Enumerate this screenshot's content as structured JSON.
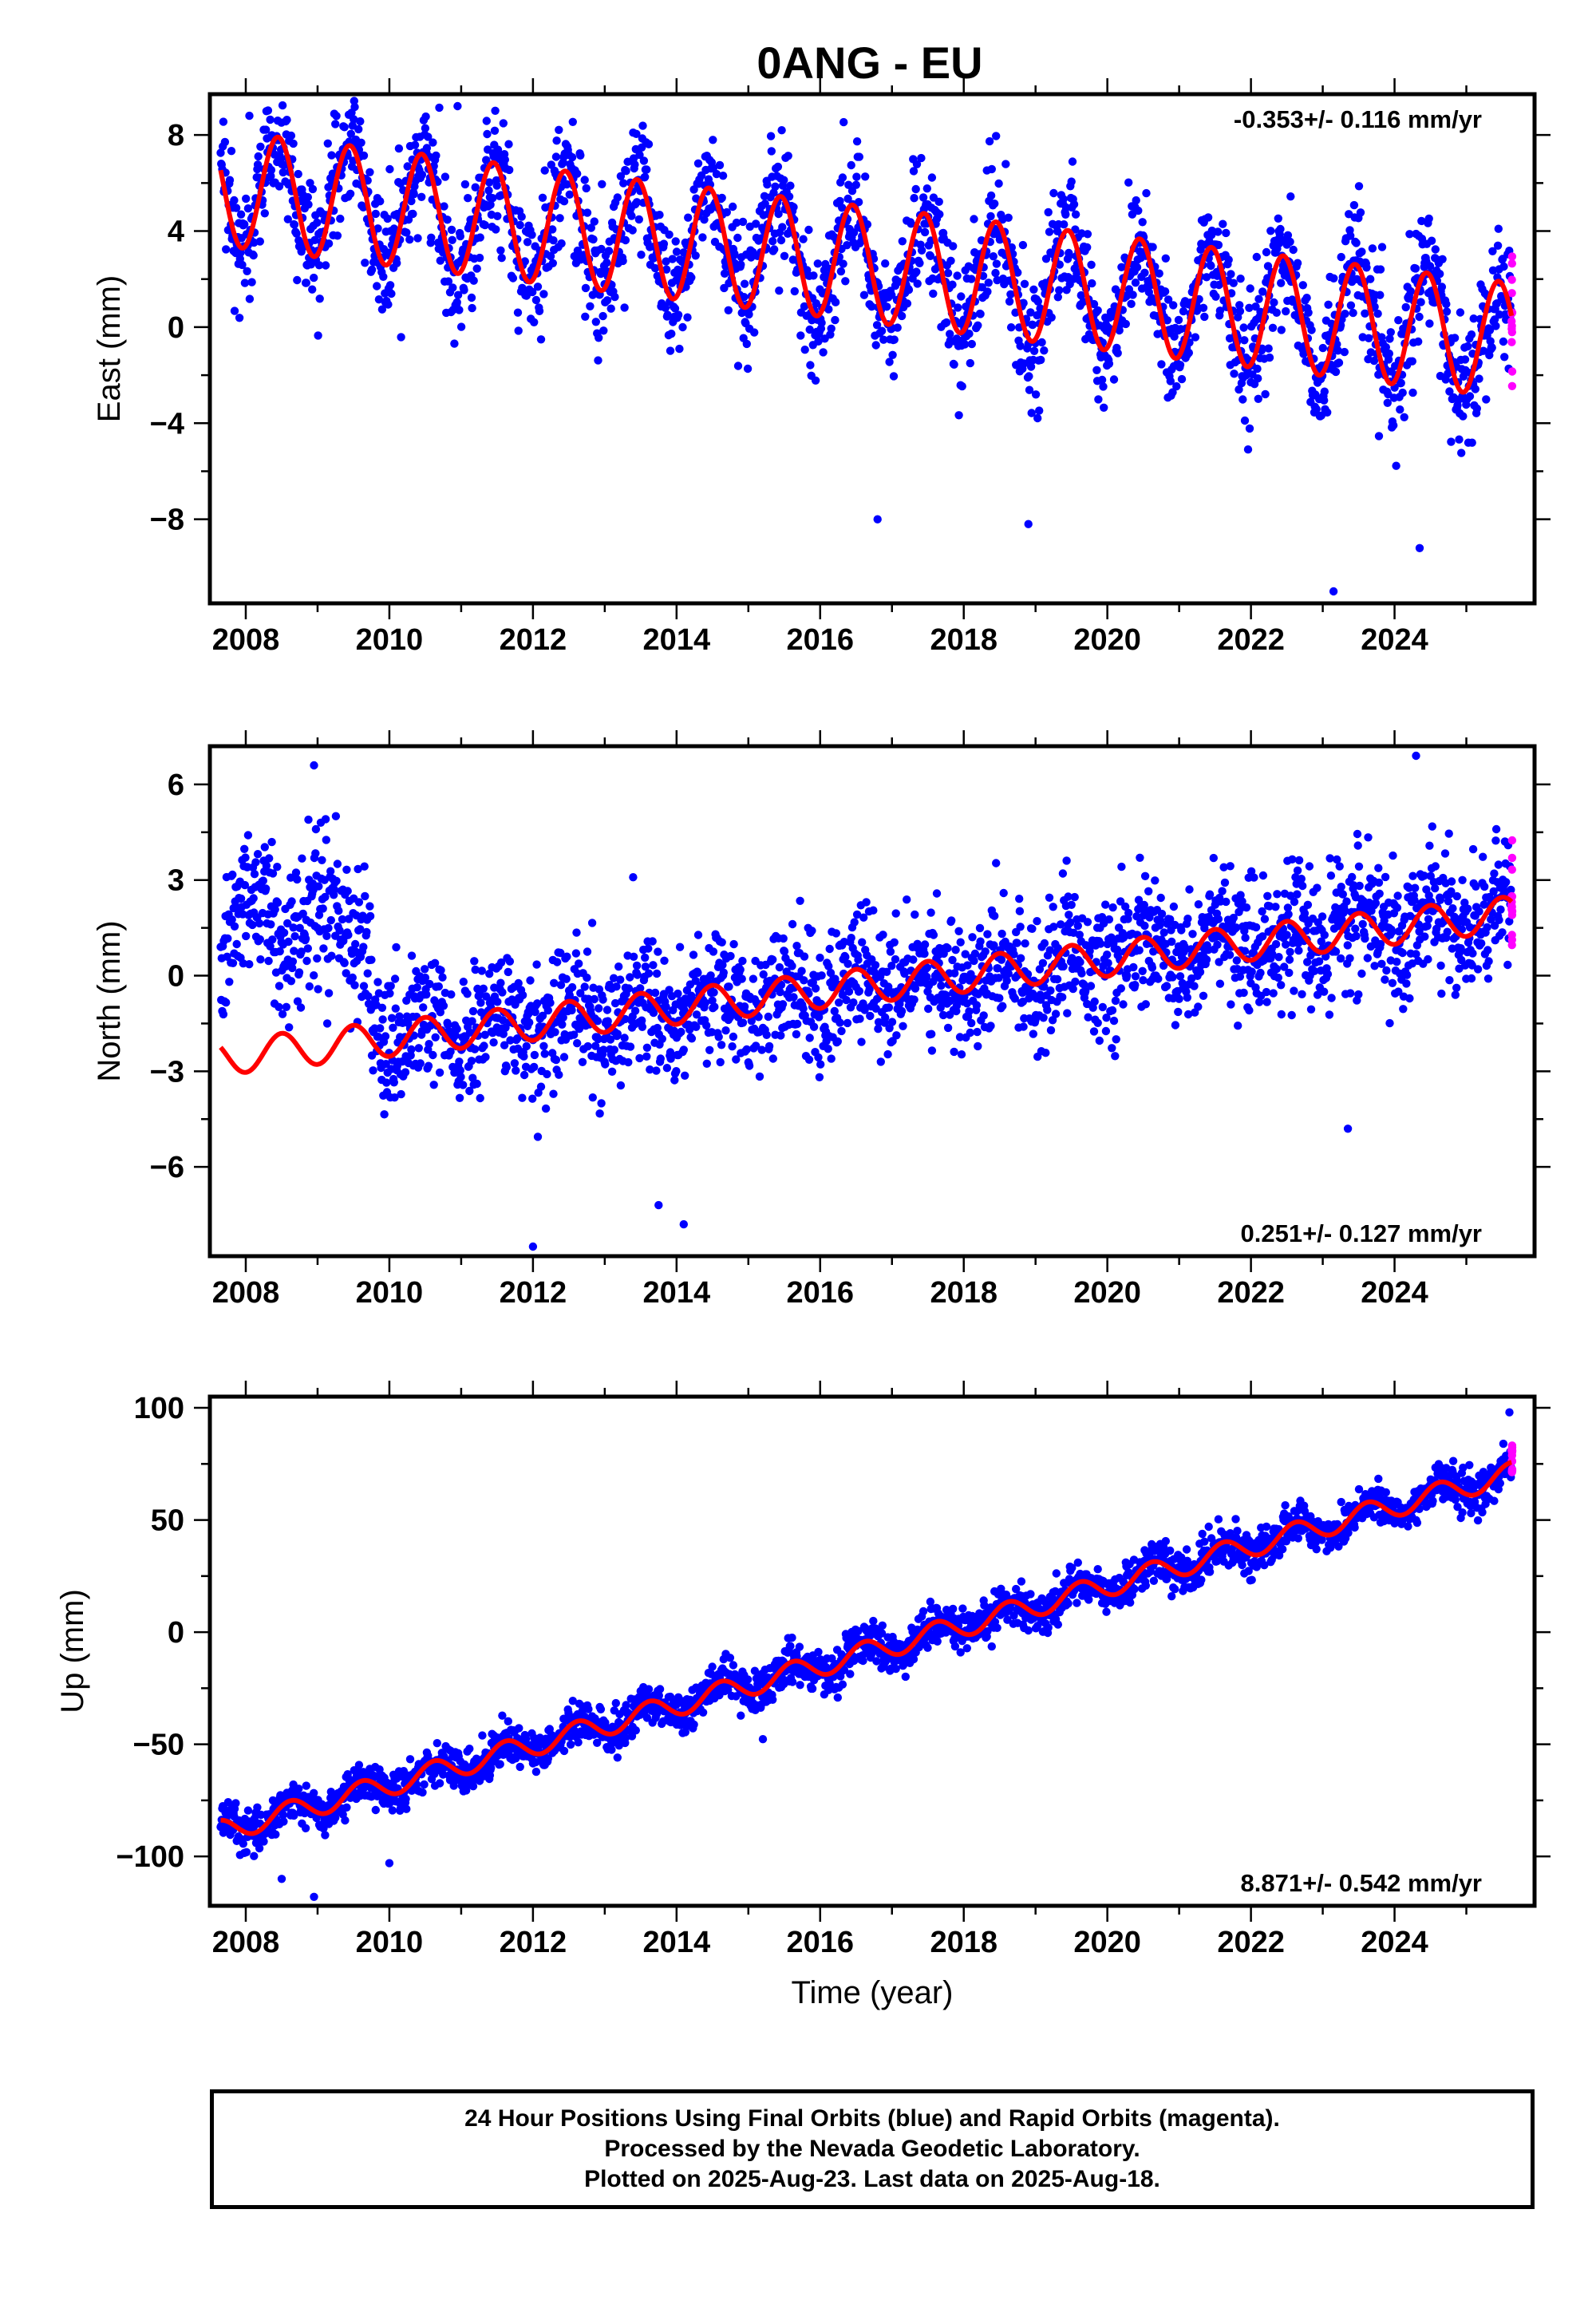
{
  "title": "0ANG - EU",
  "colors": {
    "final_orbits": "#0000ff",
    "rapid_orbits": "#ff00ff",
    "model": "#ff0000",
    "axes": "#000000"
  },
  "chart_data": [
    {
      "type": "scatter",
      "component": "East",
      "ylabel": "East (mm)",
      "xlabel": "",
      "xlim": [
        2007.5,
        2025.95
      ],
      "ylim": [
        -11.5,
        9.7
      ],
      "xticks": [
        2008,
        2010,
        2012,
        2014,
        2016,
        2018,
        2020,
        2022,
        2024
      ],
      "yticks": [
        -8,
        -4,
        0,
        4,
        8
      ],
      "yticklabels": [
        "−8",
        "−4",
        "0",
        "4",
        "8"
      ],
      "rate_label": "-0.353+/- 0.116 mm/yr",
      "rate_position": "top-right",
      "model": {
        "offset": 2.6,
        "trend_mm_per_yr": -0.353,
        "t0": 2016.7,
        "annual_amplitude": 2.4,
        "annual_peak": 0.45,
        "offsets": []
      },
      "data_span": [
        2007.65,
        2025.63
      ],
      "rapid_span": [
        2025.63,
        2025.64
      ],
      "scatter_sigma": 1.3,
      "outliers": [
        [
          2008.05,
          8.8
        ],
        [
          2010.95,
          9.2
        ],
        [
          2023.15,
          -11.0
        ],
        [
          2016.8,
          -8.0
        ],
        [
          2018.9,
          -8.2
        ],
        [
          2024.35,
          -9.2
        ]
      ],
      "series": [
        {
          "name": "Final Orbits (blue)",
          "color": "#0000ff"
        },
        {
          "name": "Rapid Orbits (magenta)",
          "color": "#ff00ff"
        },
        {
          "name": "Model",
          "color": "#ff0000"
        }
      ]
    },
    {
      "type": "scatter",
      "component": "North",
      "ylabel": "North (mm)",
      "xlabel": "",
      "xlim": [
        2007.5,
        2025.95
      ],
      "ylim": [
        -8.8,
        7.2
      ],
      "xticks": [
        2008,
        2010,
        2012,
        2014,
        2016,
        2018,
        2020,
        2022,
        2024
      ],
      "yticks": [
        -6,
        -3,
        0,
        3,
        6
      ],
      "yticklabels": [
        "−6",
        "−3",
        "0",
        "3",
        "6"
      ],
      "rate_label": "0.251+/- 0.127 mm/yr",
      "rate_position": "bottom-right",
      "model": {
        "offset": -0.3,
        "trend_mm_per_yr": 0.251,
        "t0": 2016.7,
        "annual_amplitude": 0.55,
        "annual_peak": 0.5,
        "offsets": []
      },
      "data_span": [
        2007.65,
        2025.63
      ],
      "rapid_span": [
        2025.63,
        2025.64
      ],
      "scatter_sigma": 1.0,
      "early_cluster": {
        "span": [
          2007.65,
          2009.75
        ],
        "mean": 1.8,
        "sigma": 1.2
      },
      "outliers": [
        [
          2012.0,
          -8.5
        ],
        [
          2008.95,
          6.6
        ],
        [
          2024.3,
          6.9
        ],
        [
          2014.1,
          -7.8
        ],
        [
          2013.75,
          -7.2
        ],
        [
          2023.35,
          -4.8
        ]
      ],
      "series": [
        {
          "name": "Final Orbits (blue)",
          "color": "#0000ff"
        },
        {
          "name": "Rapid Orbits (magenta)",
          "color": "#ff00ff"
        },
        {
          "name": "Model",
          "color": "#ff0000"
        }
      ]
    },
    {
      "type": "scatter",
      "component": "Up",
      "ylabel": "Up (mm)",
      "xlabel": "Time (year)",
      "xlim": [
        2007.5,
        2025.95
      ],
      "ylim": [
        -122,
        105
      ],
      "xticks": [
        2008,
        2010,
        2012,
        2014,
        2016,
        2018,
        2020,
        2022,
        2024
      ],
      "yticks": [
        -100,
        -50,
        0,
        50,
        100
      ],
      "yticklabels": [
        "−100",
        "−50",
        "0",
        "50",
        "100"
      ],
      "rate_label": "8.871+/- 0.542 mm/yr",
      "rate_position": "bottom-right",
      "model": {
        "offset": -8.5,
        "trend_mm_per_yr": 8.871,
        "t0": 2016.7,
        "annual_amplitude": 5.0,
        "annual_peak": 0.62,
        "offsets": []
      },
      "data_span": [
        2007.65,
        2025.63
      ],
      "rapid_span": [
        2025.63,
        2025.64
      ],
      "scatter_sigma": 4.5,
      "outliers": [
        [
          2008.95,
          -118
        ],
        [
          2010.0,
          -103
        ],
        [
          2008.5,
          -110
        ],
        [
          2025.6,
          98
        ]
      ],
      "series": [
        {
          "name": "Final Orbits (blue)",
          "color": "#0000ff"
        },
        {
          "name": "Rapid Orbits (magenta)",
          "color": "#ff00ff"
        },
        {
          "name": "Model",
          "color": "#ff0000"
        }
      ]
    }
  ],
  "footer": {
    "line1": "24 Hour Positions Using Final Orbits (blue) and Rapid Orbits (magenta).",
    "line2": "Processed by the Nevada Geodetic Laboratory.",
    "line3": "Plotted on 2025-Aug-23. Last data on 2025-Aug-18."
  }
}
